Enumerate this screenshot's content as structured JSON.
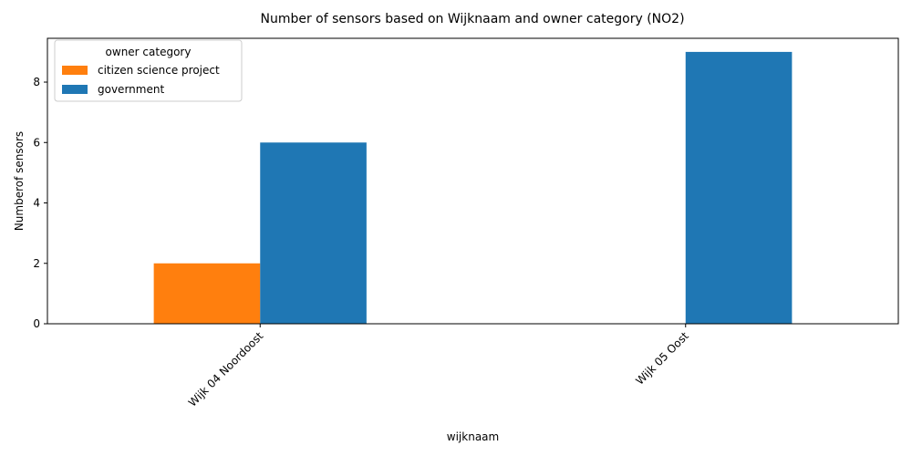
{
  "chart_data": {
    "type": "bar",
    "title": "Number of sensors based on Wijknaam and owner category (NO2)",
    "xlabel": "wijknaam",
    "ylabel": "Numberof sensors",
    "categories": [
      "Wijk 04 Noordoost",
      "Wijk 05 Oost"
    ],
    "series": [
      {
        "name": "citizen science project",
        "values": [
          2,
          0
        ],
        "color": "#ff7f0e"
      },
      {
        "name": "government",
        "values": [
          6,
          9
        ],
        "color": "#1f77b4"
      }
    ],
    "ylim": [
      0,
      9.45
    ],
    "yticks": [
      0,
      2,
      4,
      6,
      8
    ],
    "grid": false,
    "legend": {
      "title": "owner category",
      "placement": "top-left"
    }
  }
}
